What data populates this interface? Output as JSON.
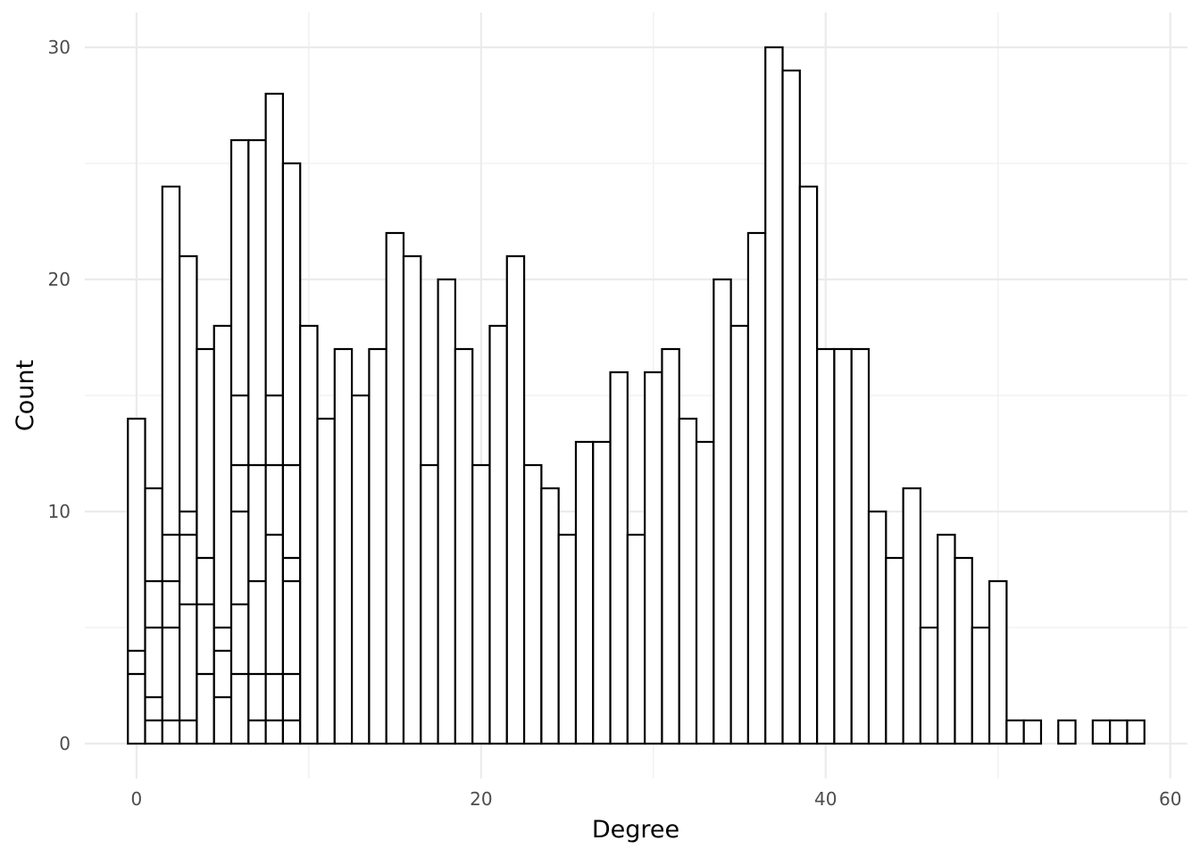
{
  "chart_data": {
    "type": "bar",
    "subtype": "stacked histogram (outline only)",
    "xlabel": "Degree",
    "ylabel": "Count",
    "xlim": [
      -3,
      61
    ],
    "ylim": [
      -1.5,
      31.5
    ],
    "x_ticks": [
      0,
      20,
      40,
      60
    ],
    "y_ticks": [
      0,
      10,
      20,
      30
    ],
    "grid": true,
    "bin_width": 1,
    "x": [
      0,
      1,
      2,
      3,
      4,
      5,
      6,
      7,
      8,
      9,
      10,
      11,
      12,
      13,
      14,
      15,
      16,
      17,
      18,
      19,
      20,
      21,
      22,
      23,
      24,
      25,
      26,
      27,
      28,
      29,
      30,
      31,
      32,
      33,
      34,
      35,
      36,
      37,
      38,
      39,
      40,
      41,
      42,
      43,
      44,
      45,
      46,
      47,
      48,
      49,
      50,
      51,
      52,
      54,
      56,
      57,
      58
    ],
    "values": [
      14,
      11,
      24,
      21,
      17,
      18,
      26,
      26,
      28,
      25,
      18,
      14,
      17,
      15,
      17,
      22,
      21,
      12,
      20,
      17,
      12,
      18,
      21,
      12,
      11,
      9,
      13,
      13,
      16,
      9,
      16,
      17,
      14,
      13,
      20,
      18,
      22,
      30,
      29,
      24,
      17,
      17,
      17,
      10,
      8,
      11,
      5,
      9,
      8,
      5,
      7,
      1,
      1,
      1,
      1,
      1,
      1
    ],
    "stack_boundaries": {
      "0": [
        3,
        4
      ],
      "1": [
        1,
        2,
        5,
        7
      ],
      "2": [
        1,
        5,
        7,
        9
      ],
      "3": [
        1,
        6,
        9,
        10
      ],
      "4": [
        3,
        6,
        8
      ],
      "5": [
        2,
        4,
        5
      ],
      "6": [
        3,
        6,
        10,
        12,
        15
      ],
      "7": [
        1,
        3,
        7,
        12
      ],
      "8": [
        1,
        3,
        9,
        12,
        15
      ],
      "9": [
        1,
        3,
        7,
        8,
        12
      ]
    }
  }
}
